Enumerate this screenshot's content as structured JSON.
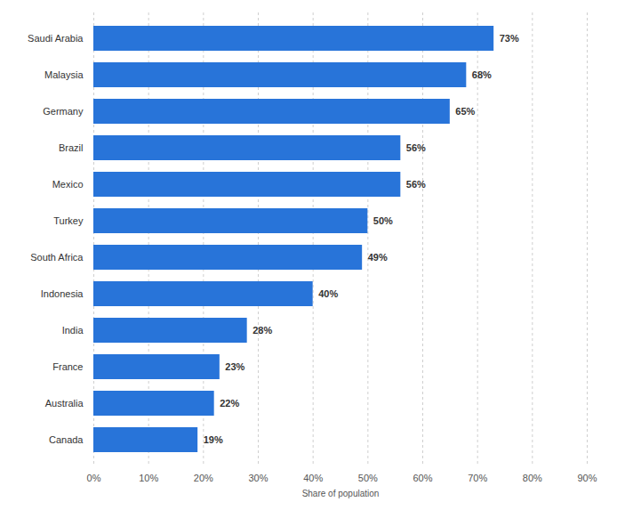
{
  "chart_data": {
    "type": "bar",
    "orientation": "horizontal",
    "categories": [
      "Saudi Arabia",
      "Malaysia",
      "Germany",
      "Brazil",
      "Mexico",
      "Turkey",
      "South Africa",
      "Indonesia",
      "India",
      "France",
      "Australia",
      "Canada"
    ],
    "values": [
      73,
      68,
      65,
      56,
      56,
      50,
      49,
      40,
      28,
      23,
      22,
      19
    ],
    "value_labels": [
      "73%",
      "68%",
      "65%",
      "56%",
      "56%",
      "50%",
      "49%",
      "40%",
      "28%",
      "23%",
      "22%",
      "19%"
    ],
    "color": "#2874d9",
    "x_label": "Share of population",
    "xlim": [
      0,
      90
    ],
    "xticks": [
      {
        "value": 0,
        "label": "0%"
      },
      {
        "value": 10,
        "label": "10%"
      },
      {
        "value": 20,
        "label": "20%"
      },
      {
        "value": 30,
        "label": "30%"
      },
      {
        "value": 40,
        "label": "40%"
      },
      {
        "value": 50,
        "label": "50%"
      },
      {
        "value": 60,
        "label": "60%"
      },
      {
        "value": 70,
        "label": "70%"
      },
      {
        "value": 80,
        "label": "80%"
      },
      {
        "value": 90,
        "label": "90%"
      }
    ],
    "grid": true,
    "data_labels": true
  }
}
